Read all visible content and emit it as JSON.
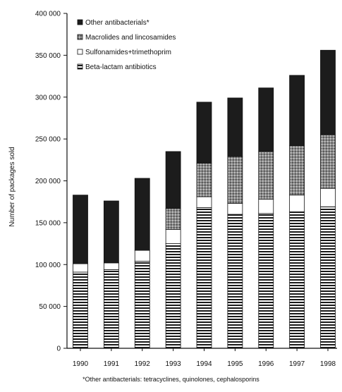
{
  "chart_data": {
    "type": "bar",
    "stacked": true,
    "title": "",
    "xlabel": "",
    "ylabel": "Number of packages sold",
    "categories": [
      "1990",
      "1991",
      "1992",
      "1993",
      "1994",
      "1995",
      "1996",
      "1997",
      "1998"
    ],
    "ylim": [
      0,
      400000
    ],
    "yticks": [
      0,
      50000,
      100000,
      150000,
      200000,
      250000,
      300000,
      350000,
      400000
    ],
    "ytick_labels": [
      "0",
      "50 000",
      "100 000",
      "150 000",
      "200 000",
      "250 000",
      "300 000",
      "350 000",
      "400 000"
    ],
    "grid": false,
    "legend_position": "top-left",
    "series": [
      {
        "name": "Beta-lactam antibiotics",
        "pattern": "horizontal-stripes",
        "values": [
          91000,
          94000,
          104000,
          125000,
          168000,
          160000,
          161000,
          163000,
          169000
        ]
      },
      {
        "name": "Sulfonamides+trimethoprim",
        "pattern": "white",
        "values": [
          10000,
          8000,
          13000,
          17000,
          13000,
          13000,
          17000,
          20000,
          22000
        ]
      },
      {
        "name": "Macrolides and lincosamides",
        "pattern": "dotted-gray",
        "values": [
          0,
          0,
          0,
          25000,
          40000,
          56000,
          57000,
          59000,
          64000
        ]
      },
      {
        "name": "Other antibacterials*",
        "pattern": "black",
        "values": [
          82000,
          74000,
          86000,
          68000,
          73000,
          70000,
          76000,
          84000,
          101000
        ]
      }
    ],
    "legend_order": [
      "Other antibacterials*",
      "Macrolides and lincosamides",
      "Sulfonamides+trimethoprim",
      "Beta-lactam antibiotics"
    ],
    "footnote": "*Other antibacterials: tetracyclines, quinolones, cephalosporins"
  }
}
